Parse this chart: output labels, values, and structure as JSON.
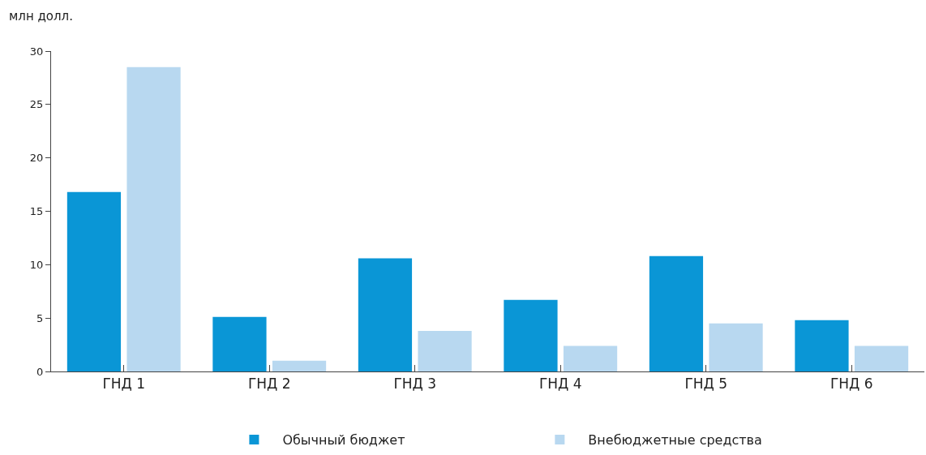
{
  "chart_data": {
    "type": "bar",
    "ylabel": "млн долл.",
    "categories": [
      "ГНД 1",
      "ГНД 2",
      "ГНД 3",
      "ГНД 4",
      "ГНД 5",
      "ГНД 6"
    ],
    "series": [
      {
        "name": "Обычный бюджет",
        "color": "#0a96d6",
        "values": [
          16.8,
          5.1,
          10.6,
          6.7,
          10.8,
          4.8
        ]
      },
      {
        "name": "Внебюджетные средства",
        "color": "#b8d8f0",
        "values": [
          28.5,
          1.0,
          3.8,
          2.4,
          4.5,
          2.4
        ]
      }
    ],
    "ylim": [
      0,
      30
    ],
    "yticks": [
      0,
      5,
      10,
      15,
      20,
      25,
      30
    ],
    "legend": "bottom"
  }
}
